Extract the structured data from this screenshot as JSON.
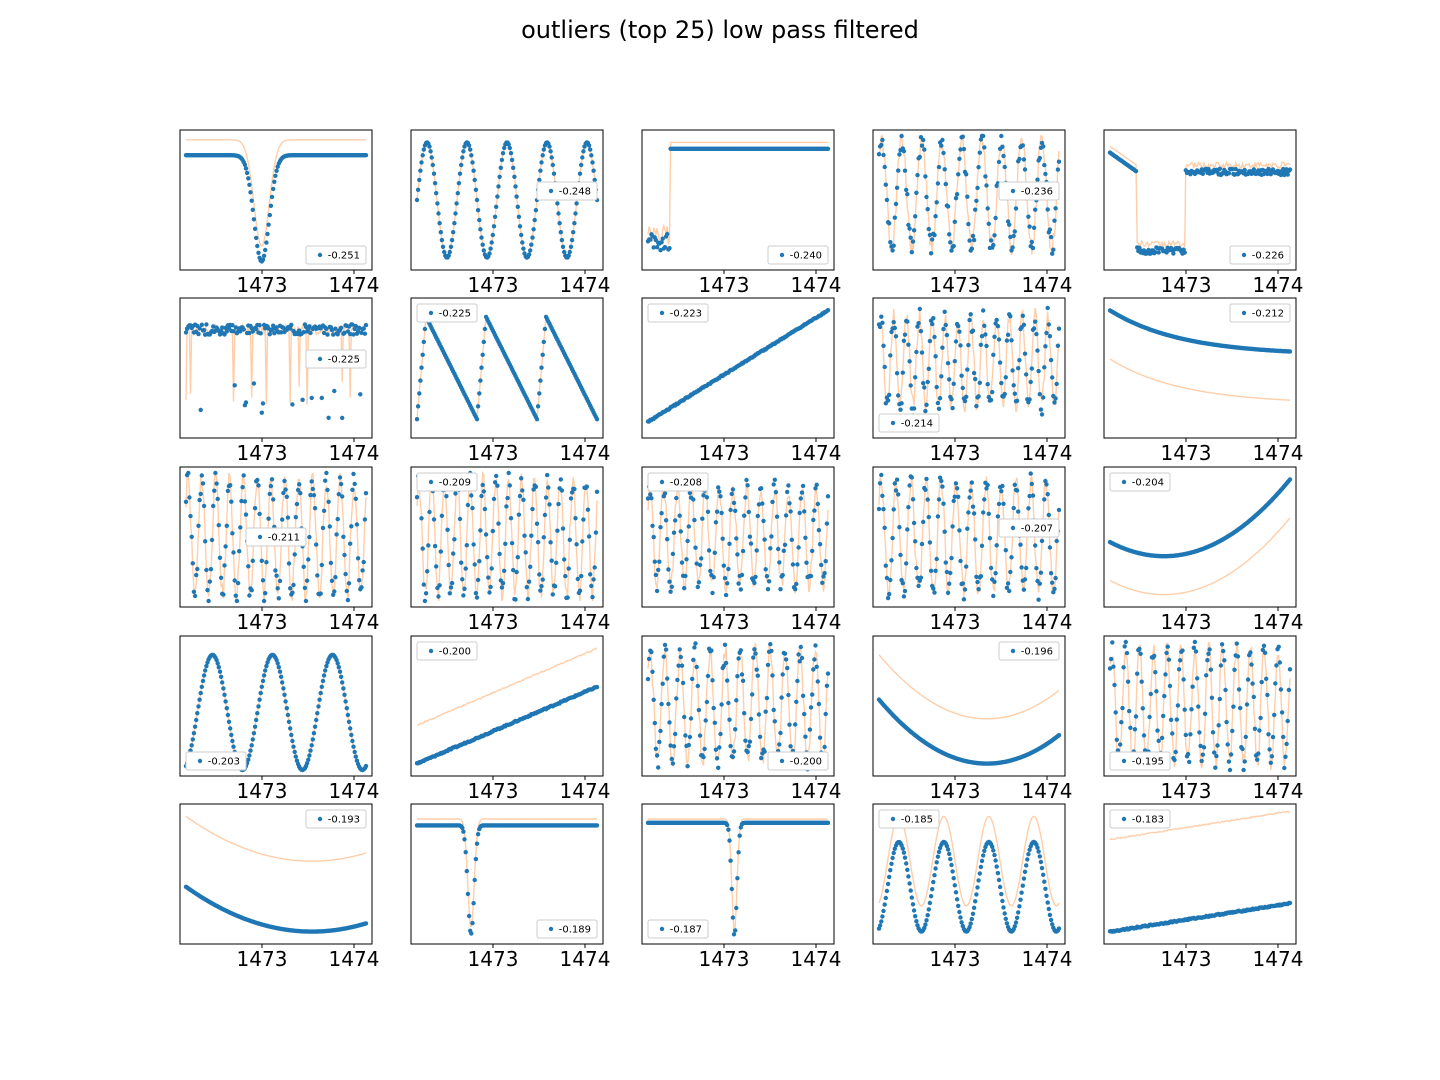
{
  "figure": {
    "title": "outliers (top 25) low pass filtered"
  },
  "colors": {
    "points": "#1f77b4",
    "filtered": "#ffbe8c",
    "frame": "#000000"
  },
  "chart_data": {
    "type": "scatter",
    "x_ticks": [
      1473,
      1474
    ],
    "x_tick_labels": [
      "1473",
      "1474"
    ],
    "xlim": [
      1472.0,
      1474.1
    ],
    "grid": false,
    "panels": [
      {
        "legend": "-0.251",
        "legend_loc": "lower right",
        "shape": "dip",
        "dip_center": 0.42,
        "dip_width": 0.06,
        "base": 0.85,
        "depth": 0.83,
        "filtered_offset": 0.12
      },
      {
        "legend": "-0.248",
        "legend_loc": "center right",
        "shape": "sine",
        "cycles": 4.5,
        "amp": 0.45,
        "base": 0.5,
        "filtered_offset": 0
      },
      {
        "legend": "-0.240",
        "legend_loc": "lower right",
        "shape": "step",
        "step_at": 0.12,
        "low": 0.1,
        "high": 0.9,
        "filtered_offset": 0.05
      },
      {
        "legend": "-0.236",
        "legend_loc": "center right",
        "shape": "sine_noisy",
        "cycles": 9,
        "amp": 0.42,
        "base": 0.55,
        "filtered_offset": 0
      },
      {
        "legend": "-0.226",
        "legend_loc": "lower right",
        "shape": "box",
        "start": 0.15,
        "end": 0.42,
        "low": 0.08,
        "high": 0.72,
        "filtered_offset": 0.05
      },
      {
        "legend": "-0.225",
        "legend_loc": "center right",
        "shape": "flat_noisy",
        "base": 0.8,
        "filtered_offset": 0
      },
      {
        "legend": "-0.225",
        "legend_loc": "upper left",
        "shape": "sawtooth",
        "cycles": 3,
        "amp": 0.4,
        "base": 0.5,
        "filtered_offset": 0
      },
      {
        "legend": "-0.223",
        "legend_loc": "upper left",
        "shape": "rise",
        "start": 0.08,
        "end": 0.95,
        "filtered_offset": 0
      },
      {
        "legend": "-0.214",
        "legend_loc": "lower left",
        "shape": "sine_noisy",
        "cycles": 14,
        "amp": 0.35,
        "base": 0.55,
        "filtered_offset": 0
      },
      {
        "legend": "-0.212",
        "legend_loc": "upper right",
        "shape": "decay",
        "start": 0.95,
        "end": 0.6,
        "filtered_offset": -0.38
      },
      {
        "legend": "-0.211",
        "legend_loc": "center",
        "shape": "sine_noisy",
        "cycles": 13,
        "amp": 0.45,
        "base": 0.5,
        "filtered_offset": 0
      },
      {
        "legend": "-0.209",
        "legend_loc": "upper left",
        "shape": "sine_noisy",
        "cycles": 14,
        "amp": 0.45,
        "base": 0.5,
        "filtered_offset": 0
      },
      {
        "legend": "-0.208",
        "legend_loc": "upper left",
        "shape": "sine_noisy",
        "cycles": 13,
        "amp": 0.38,
        "base": 0.5,
        "filtered_offset": 0
      },
      {
        "legend": "-0.207",
        "legend_loc": "center right",
        "shape": "sine_noisy",
        "cycles": 12,
        "amp": 0.43,
        "base": 0.5,
        "filtered_offset": 0
      },
      {
        "legend": "-0.204",
        "legend_loc": "upper left",
        "shape": "valley",
        "min_at": 0.3,
        "low": 0.35,
        "high": 0.95,
        "filtered_offset": -0.3
      },
      {
        "legend": "-0.203",
        "legend_loc": "lower left",
        "shape": "hump",
        "cycles": 3,
        "amp": 0.45,
        "base": 0.45,
        "filtered_offset": 0
      },
      {
        "legend": "-0.200",
        "legend_loc": "upper left",
        "shape": "rise",
        "start": 0.05,
        "end": 0.65,
        "filtered_offset": 0.3
      },
      {
        "legend": "-0.200",
        "legend_loc": "lower right",
        "shape": "sine_noisy",
        "cycles": 12,
        "amp": 0.43,
        "base": 0.5,
        "filtered_offset": 0
      },
      {
        "legend": "-0.196",
        "legend_loc": "upper right",
        "shape": "valley",
        "min_at": 0.6,
        "low": 0.05,
        "high": 0.55,
        "filtered_offset": 0.35
      },
      {
        "legend": "-0.195",
        "legend_loc": "lower left",
        "shape": "sine_noisy",
        "cycles": 13,
        "amp": 0.45,
        "base": 0.5,
        "filtered_offset": 0
      },
      {
        "legend": "-0.193",
        "legend_loc": "upper right",
        "shape": "valley",
        "min_at": 0.7,
        "low": 0.05,
        "high": 0.4,
        "filtered_offset": 0.55
      },
      {
        "legend": "-0.189",
        "legend_loc": "lower right",
        "shape": "dip",
        "dip_center": 0.3,
        "dip_width": 0.025,
        "base": 0.88,
        "depth": 0.85,
        "filtered_offset": 0.05
      },
      {
        "legend": "-0.187",
        "legend_loc": "lower left",
        "shape": "dip",
        "dip_center": 0.48,
        "dip_width": 0.02,
        "base": 0.9,
        "depth": 0.88,
        "filtered_offset": 0.03
      },
      {
        "legend": "-0.185",
        "legend_loc": "upper left",
        "shape": "hump",
        "cycles": 4,
        "amp": 0.35,
        "base": 0.4,
        "filtered_offset": 0.2
      },
      {
        "legend": "-0.183",
        "legend_loc": "upper left",
        "shape": "rise",
        "start": 0.05,
        "end": 0.27,
        "filtered_offset": 0.72
      }
    ]
  }
}
